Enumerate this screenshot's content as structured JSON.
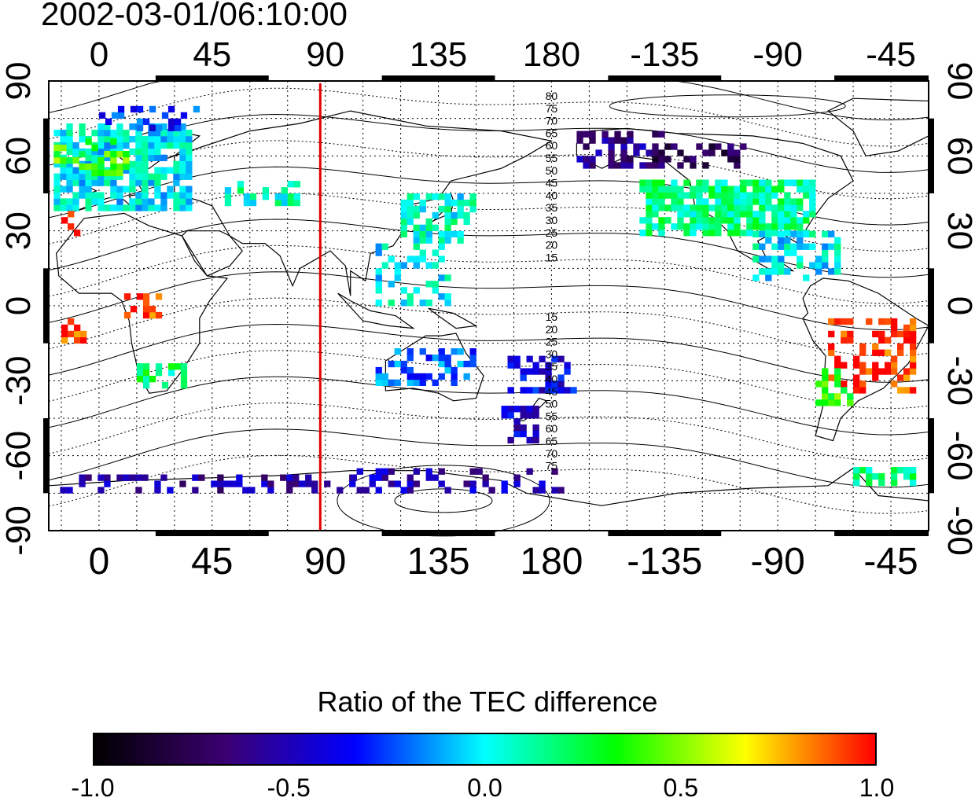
{
  "title": "2002-03-01/06:10:00",
  "map": {
    "top_x_labels": [
      "0",
      "45",
      "90",
      "135",
      "180",
      "-135",
      "-90",
      "-45"
    ],
    "bottom_x_labels": [
      "0",
      "45",
      "90",
      "135",
      "180",
      "-135",
      "-90",
      "-45"
    ],
    "left_y_labels": [
      "90",
      "60",
      "30",
      "0",
      "-30",
      "-60",
      "-90"
    ],
    "right_y_labels": [
      "90",
      "60",
      "30",
      "0",
      "-30",
      "-60",
      "-90"
    ],
    "lon_range": [
      -20,
      330
    ],
    "lat_range": [
      -90,
      90
    ],
    "grid": true,
    "marker_longitude": 88,
    "marker_color": "#e00000",
    "contour_labels_north": [
      "80",
      "75",
      "70",
      "65",
      "60",
      "55",
      "50",
      "45",
      "40",
      "35",
      "30",
      "25",
      "20",
      "15"
    ],
    "contour_labels_south": [
      "15",
      "20",
      "25",
      "30",
      "35",
      "40",
      "45",
      "50",
      "55",
      "60",
      "65",
      "70",
      "75"
    ]
  },
  "colorbar": {
    "title": "Ratio of the TEC difference",
    "tick_labels": [
      "-1.0",
      "-0.5",
      "0.0",
      "0.5",
      "1.0"
    ],
    "range": [
      -1.0,
      1.0
    ],
    "colors": [
      "#000000",
      "#3a0070",
      "#0000ff",
      "#00ffff",
      "#00ff00",
      "#ffff00",
      "#ff0000"
    ]
  }
}
